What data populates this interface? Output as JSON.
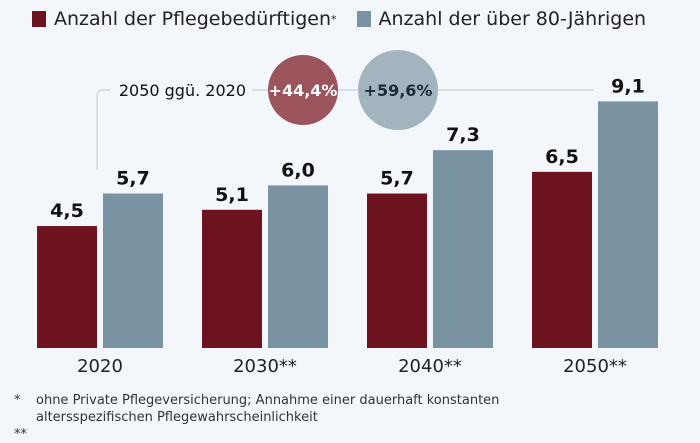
{
  "chart_data": {
    "type": "bar",
    "categories": [
      "2020",
      "2030**",
      "2040**",
      "2050**"
    ],
    "series": [
      {
        "name": "Anzahl der Pflegebedürftigen*",
        "values": [
          4.5,
          5.1,
          5.7,
          6.5
        ],
        "labels": [
          "4,5",
          "5,1",
          "5,7",
          "6,5"
        ],
        "color": "#6e1420"
      },
      {
        "name": "Anzahl der über 80-Jährigen",
        "values": [
          5.7,
          6.0,
          7.3,
          9.1
        ],
        "labels": [
          "5,7",
          "6,0",
          "7,3",
          "9,1"
        ],
        "color": "#7a93a3"
      }
    ],
    "ylim": [
      0,
      10
    ],
    "grid": false,
    "legend": "top",
    "annotation": {
      "label": "2050 ggü. 2020",
      "changes": [
        {
          "text": "+44,4%",
          "color": "#9b535c"
        },
        {
          "text": "+59,6%",
          "color": "#a4b4bf"
        }
      ]
    }
  },
  "legend": {
    "items": [
      {
        "label": "Anzahl der Pflegebedürftigen",
        "sup": "*"
      },
      {
        "label": "Anzahl der über 80-Jährigen",
        "sup": ""
      }
    ]
  },
  "footnotes": [
    {
      "marker": "*",
      "text": "ohne Private Pflegeversicherung; Annahme einer dauerhaft konstanten altersspezifischen Pflegewahrscheinlichkeit"
    },
    {
      "marker": "**",
      "text": ""
    }
  ]
}
